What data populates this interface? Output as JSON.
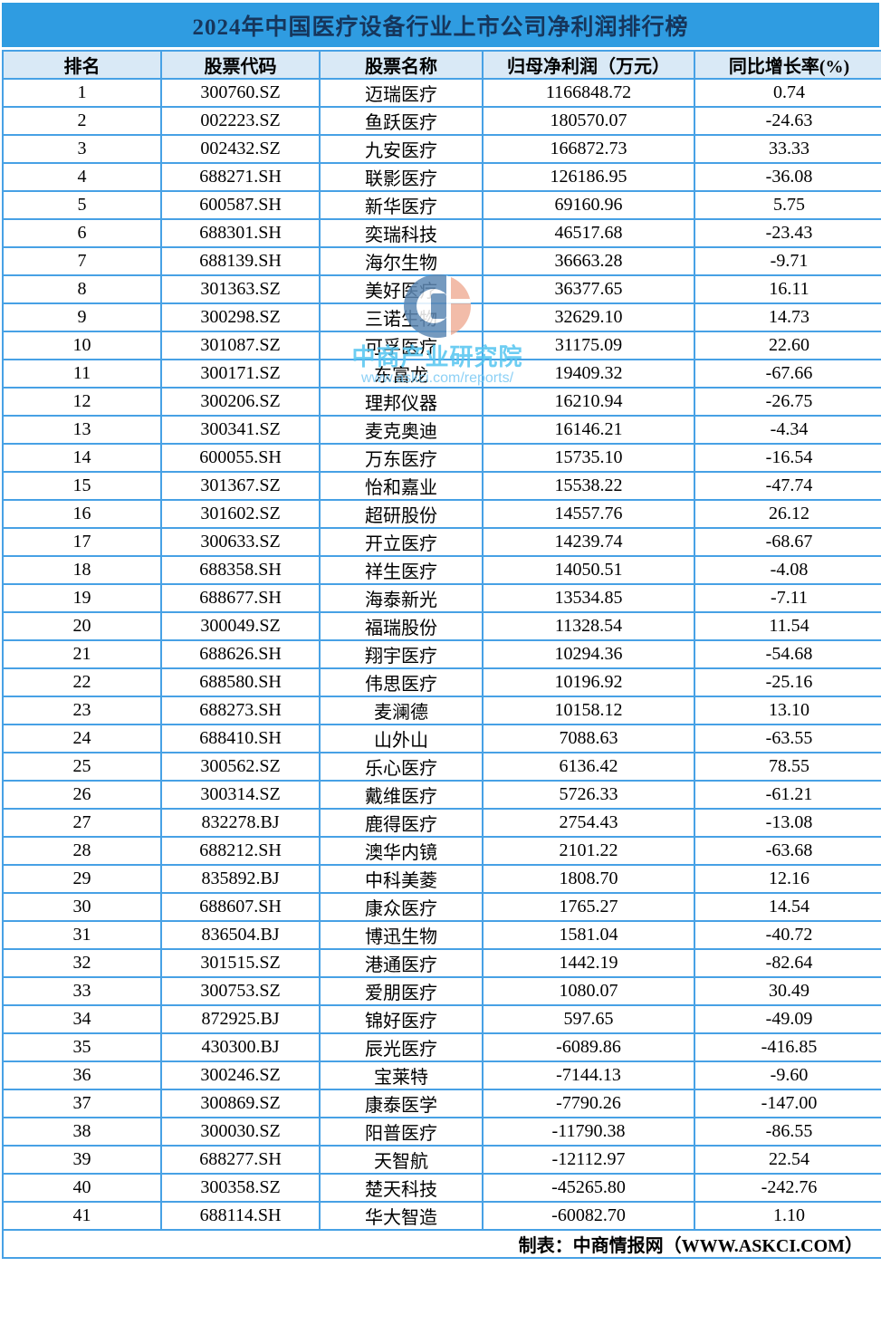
{
  "title": "2024年中国医疗设备行业上市公司净利润排行榜",
  "footer": {
    "credit": "制表：中商情报网（WWW.ASKCI.COM）"
  },
  "watermark": {
    "brand": "中商产业研究院",
    "url": "www.askci.com/reports/",
    "logo": "askci-logo"
  },
  "colors": {
    "title_bar": "#2f9ce1",
    "title_text": "#16365c",
    "header_bg": "#d9e9f6",
    "grid_border": "#47a1e5",
    "watermark_blue": "#5e89b4",
    "watermark_orange": "#f0b19b",
    "watermark_text": "#54c4f0"
  },
  "chart_data": {
    "type": "table",
    "title": "2024年中国医疗设备行业上市公司净利润排行榜",
    "columns": [
      "排名",
      "股票代码",
      "股票名称",
      "归母净利润（万元）",
      "同比增长率(%)"
    ],
    "rows": [
      [
        "1",
        "300760.SZ",
        "迈瑞医疗",
        "1166848.72",
        "0.74"
      ],
      [
        "2",
        "002223.SZ",
        "鱼跃医疗",
        "180570.07",
        "-24.63"
      ],
      [
        "3",
        "002432.SZ",
        "九安医疗",
        "166872.73",
        "33.33"
      ],
      [
        "4",
        "688271.SH",
        "联影医疗",
        "126186.95",
        "-36.08"
      ],
      [
        "5",
        "600587.SH",
        "新华医疗",
        "69160.96",
        "5.75"
      ],
      [
        "6",
        "688301.SH",
        "奕瑞科技",
        "46517.68",
        "-23.43"
      ],
      [
        "7",
        "688139.SH",
        "海尔生物",
        "36663.28",
        "-9.71"
      ],
      [
        "8",
        "301363.SZ",
        "美好医疗",
        "36377.65",
        "16.11"
      ],
      [
        "9",
        "300298.SZ",
        "三诺生物",
        "32629.10",
        "14.73"
      ],
      [
        "10",
        "301087.SZ",
        "可孚医疗",
        "31175.09",
        "22.60"
      ],
      [
        "11",
        "300171.SZ",
        "东富龙",
        "19409.32",
        "-67.66"
      ],
      [
        "12",
        "300206.SZ",
        "理邦仪器",
        "16210.94",
        "-26.75"
      ],
      [
        "13",
        "300341.SZ",
        "麦克奥迪",
        "16146.21",
        "-4.34"
      ],
      [
        "14",
        "600055.SH",
        "万东医疗",
        "15735.10",
        "-16.54"
      ],
      [
        "15",
        "301367.SZ",
        "怡和嘉业",
        "15538.22",
        "-47.74"
      ],
      [
        "16",
        "301602.SZ",
        "超研股份",
        "14557.76",
        "26.12"
      ],
      [
        "17",
        "300633.SZ",
        "开立医疗",
        "14239.74",
        "-68.67"
      ],
      [
        "18",
        "688358.SH",
        "祥生医疗",
        "14050.51",
        "-4.08"
      ],
      [
        "19",
        "688677.SH",
        "海泰新光",
        "13534.85",
        "-7.11"
      ],
      [
        "20",
        "300049.SZ",
        "福瑞股份",
        "11328.54",
        "11.54"
      ],
      [
        "21",
        "688626.SH",
        "翔宇医疗",
        "10294.36",
        "-54.68"
      ],
      [
        "22",
        "688580.SH",
        "伟思医疗",
        "10196.92",
        "-25.16"
      ],
      [
        "23",
        "688273.SH",
        "麦澜德",
        "10158.12",
        "13.10"
      ],
      [
        "24",
        "688410.SH",
        "山外山",
        "7088.63",
        "-63.55"
      ],
      [
        "25",
        "300562.SZ",
        "乐心医疗",
        "6136.42",
        "78.55"
      ],
      [
        "26",
        "300314.SZ",
        "戴维医疗",
        "5726.33",
        "-61.21"
      ],
      [
        "27",
        "832278.BJ",
        "鹿得医疗",
        "2754.43",
        "-13.08"
      ],
      [
        "28",
        "688212.SH",
        "澳华内镜",
        "2101.22",
        "-63.68"
      ],
      [
        "29",
        "835892.BJ",
        "中科美菱",
        "1808.70",
        "12.16"
      ],
      [
        "30",
        "688607.SH",
        "康众医疗",
        "1765.27",
        "14.54"
      ],
      [
        "31",
        "836504.BJ",
        "博迅生物",
        "1581.04",
        "-40.72"
      ],
      [
        "32",
        "301515.SZ",
        "港通医疗",
        "1442.19",
        "-82.64"
      ],
      [
        "33",
        "300753.SZ",
        "爱朋医疗",
        "1080.07",
        "30.49"
      ],
      [
        "34",
        "872925.BJ",
        "锦好医疗",
        "597.65",
        "-49.09"
      ],
      [
        "35",
        "430300.BJ",
        "辰光医疗",
        "-6089.86",
        "-416.85"
      ],
      [
        "36",
        "300246.SZ",
        "宝莱特",
        "-7144.13",
        "-9.60"
      ],
      [
        "37",
        "300869.SZ",
        "康泰医学",
        "-7790.26",
        "-147.00"
      ],
      [
        "38",
        "300030.SZ",
        "阳普医疗",
        "-11790.38",
        "-86.55"
      ],
      [
        "39",
        "688277.SH",
        "天智航",
        "-12112.97",
        "22.54"
      ],
      [
        "40",
        "300358.SZ",
        "楚天科技",
        "-45265.80",
        "-242.76"
      ],
      [
        "41",
        "688114.SH",
        "华大智造",
        "-60082.70",
        "1.10"
      ]
    ]
  }
}
